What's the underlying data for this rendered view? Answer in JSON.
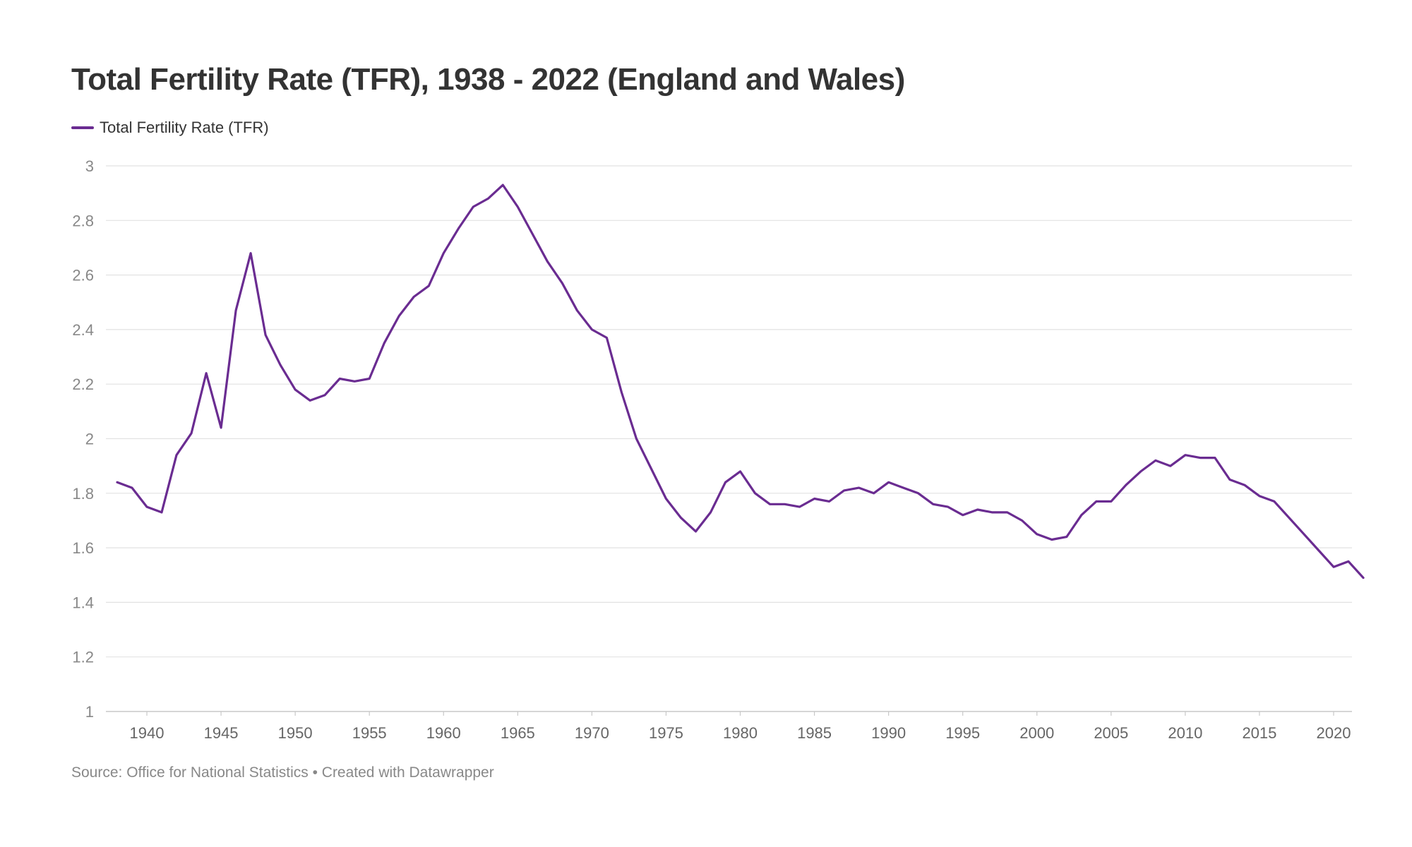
{
  "chart_data": {
    "type": "line",
    "title": "Total Fertility Rate (TFR), 1938 - 2022 (England and Wales)",
    "xlabel": "",
    "ylabel": "",
    "xlim": [
      1938,
      2022
    ],
    "ylim": [
      1,
      3
    ],
    "yticks": [
      1,
      1.2,
      1.4,
      1.6,
      1.8,
      2,
      2.2,
      2.4,
      2.6,
      2.8,
      3
    ],
    "ytick_labels": [
      "1",
      "1.2",
      "1.4",
      "1.6",
      "1.8",
      "2",
      "2.2",
      "2.4",
      "2.6",
      "2.8",
      "3"
    ],
    "xticks": [
      1940,
      1945,
      1950,
      1955,
      1960,
      1965,
      1970,
      1975,
      1980,
      1985,
      1990,
      1995,
      2000,
      2005,
      2010,
      2015,
      2020
    ],
    "xtick_labels": [
      "1940",
      "1945",
      "1950",
      "1955",
      "1960",
      "1965",
      "1970",
      "1975",
      "1980",
      "1985",
      "1990",
      "1995",
      "2000",
      "2005",
      "2010",
      "2015",
      "2020"
    ],
    "grid": true,
    "legend_position": "top-left",
    "x": [
      1938,
      1939,
      1940,
      1941,
      1942,
      1943,
      1944,
      1945,
      1946,
      1947,
      1948,
      1949,
      1950,
      1951,
      1952,
      1953,
      1954,
      1955,
      1956,
      1957,
      1958,
      1959,
      1960,
      1961,
      1962,
      1963,
      1964,
      1965,
      1966,
      1967,
      1968,
      1969,
      1970,
      1971,
      1972,
      1973,
      1974,
      1975,
      1976,
      1977,
      1978,
      1979,
      1980,
      1981,
      1982,
      1983,
      1984,
      1985,
      1986,
      1987,
      1988,
      1989,
      1990,
      1991,
      1992,
      1993,
      1994,
      1995,
      1996,
      1997,
      1998,
      1999,
      2000,
      2001,
      2002,
      2003,
      2004,
      2005,
      2006,
      2007,
      2008,
      2009,
      2010,
      2011,
      2012,
      2013,
      2014,
      2015,
      2016,
      2017,
      2018,
      2019,
      2020,
      2021,
      2022
    ],
    "series": [
      {
        "name": "Total Fertility Rate (TFR)",
        "color": "#6a2c91",
        "values": [
          1.84,
          1.82,
          1.75,
          1.73,
          1.94,
          2.02,
          2.24,
          2.04,
          2.47,
          2.68,
          2.38,
          2.27,
          2.18,
          2.14,
          2.16,
          2.22,
          2.21,
          2.22,
          2.35,
          2.45,
          2.52,
          2.56,
          2.68,
          2.77,
          2.85,
          2.88,
          2.93,
          2.85,
          2.75,
          2.65,
          2.57,
          2.47,
          2.4,
          2.37,
          2.17,
          2.0,
          1.89,
          1.78,
          1.71,
          1.66,
          1.73,
          1.84,
          1.88,
          1.8,
          1.76,
          1.76,
          1.75,
          1.78,
          1.77,
          1.81,
          1.82,
          1.8,
          1.84,
          1.82,
          1.8,
          1.76,
          1.75,
          1.72,
          1.74,
          1.73,
          1.73,
          1.7,
          1.65,
          1.63,
          1.64,
          1.72,
          1.77,
          1.77,
          1.83,
          1.88,
          1.92,
          1.9,
          1.94,
          1.93,
          1.93,
          1.85,
          1.83,
          1.79,
          1.77,
          1.71,
          1.65,
          1.59,
          1.53,
          1.55,
          1.49
        ]
      }
    ]
  },
  "footer": {
    "source": "Source: Office for National Statistics • Created with Datawrapper"
  }
}
